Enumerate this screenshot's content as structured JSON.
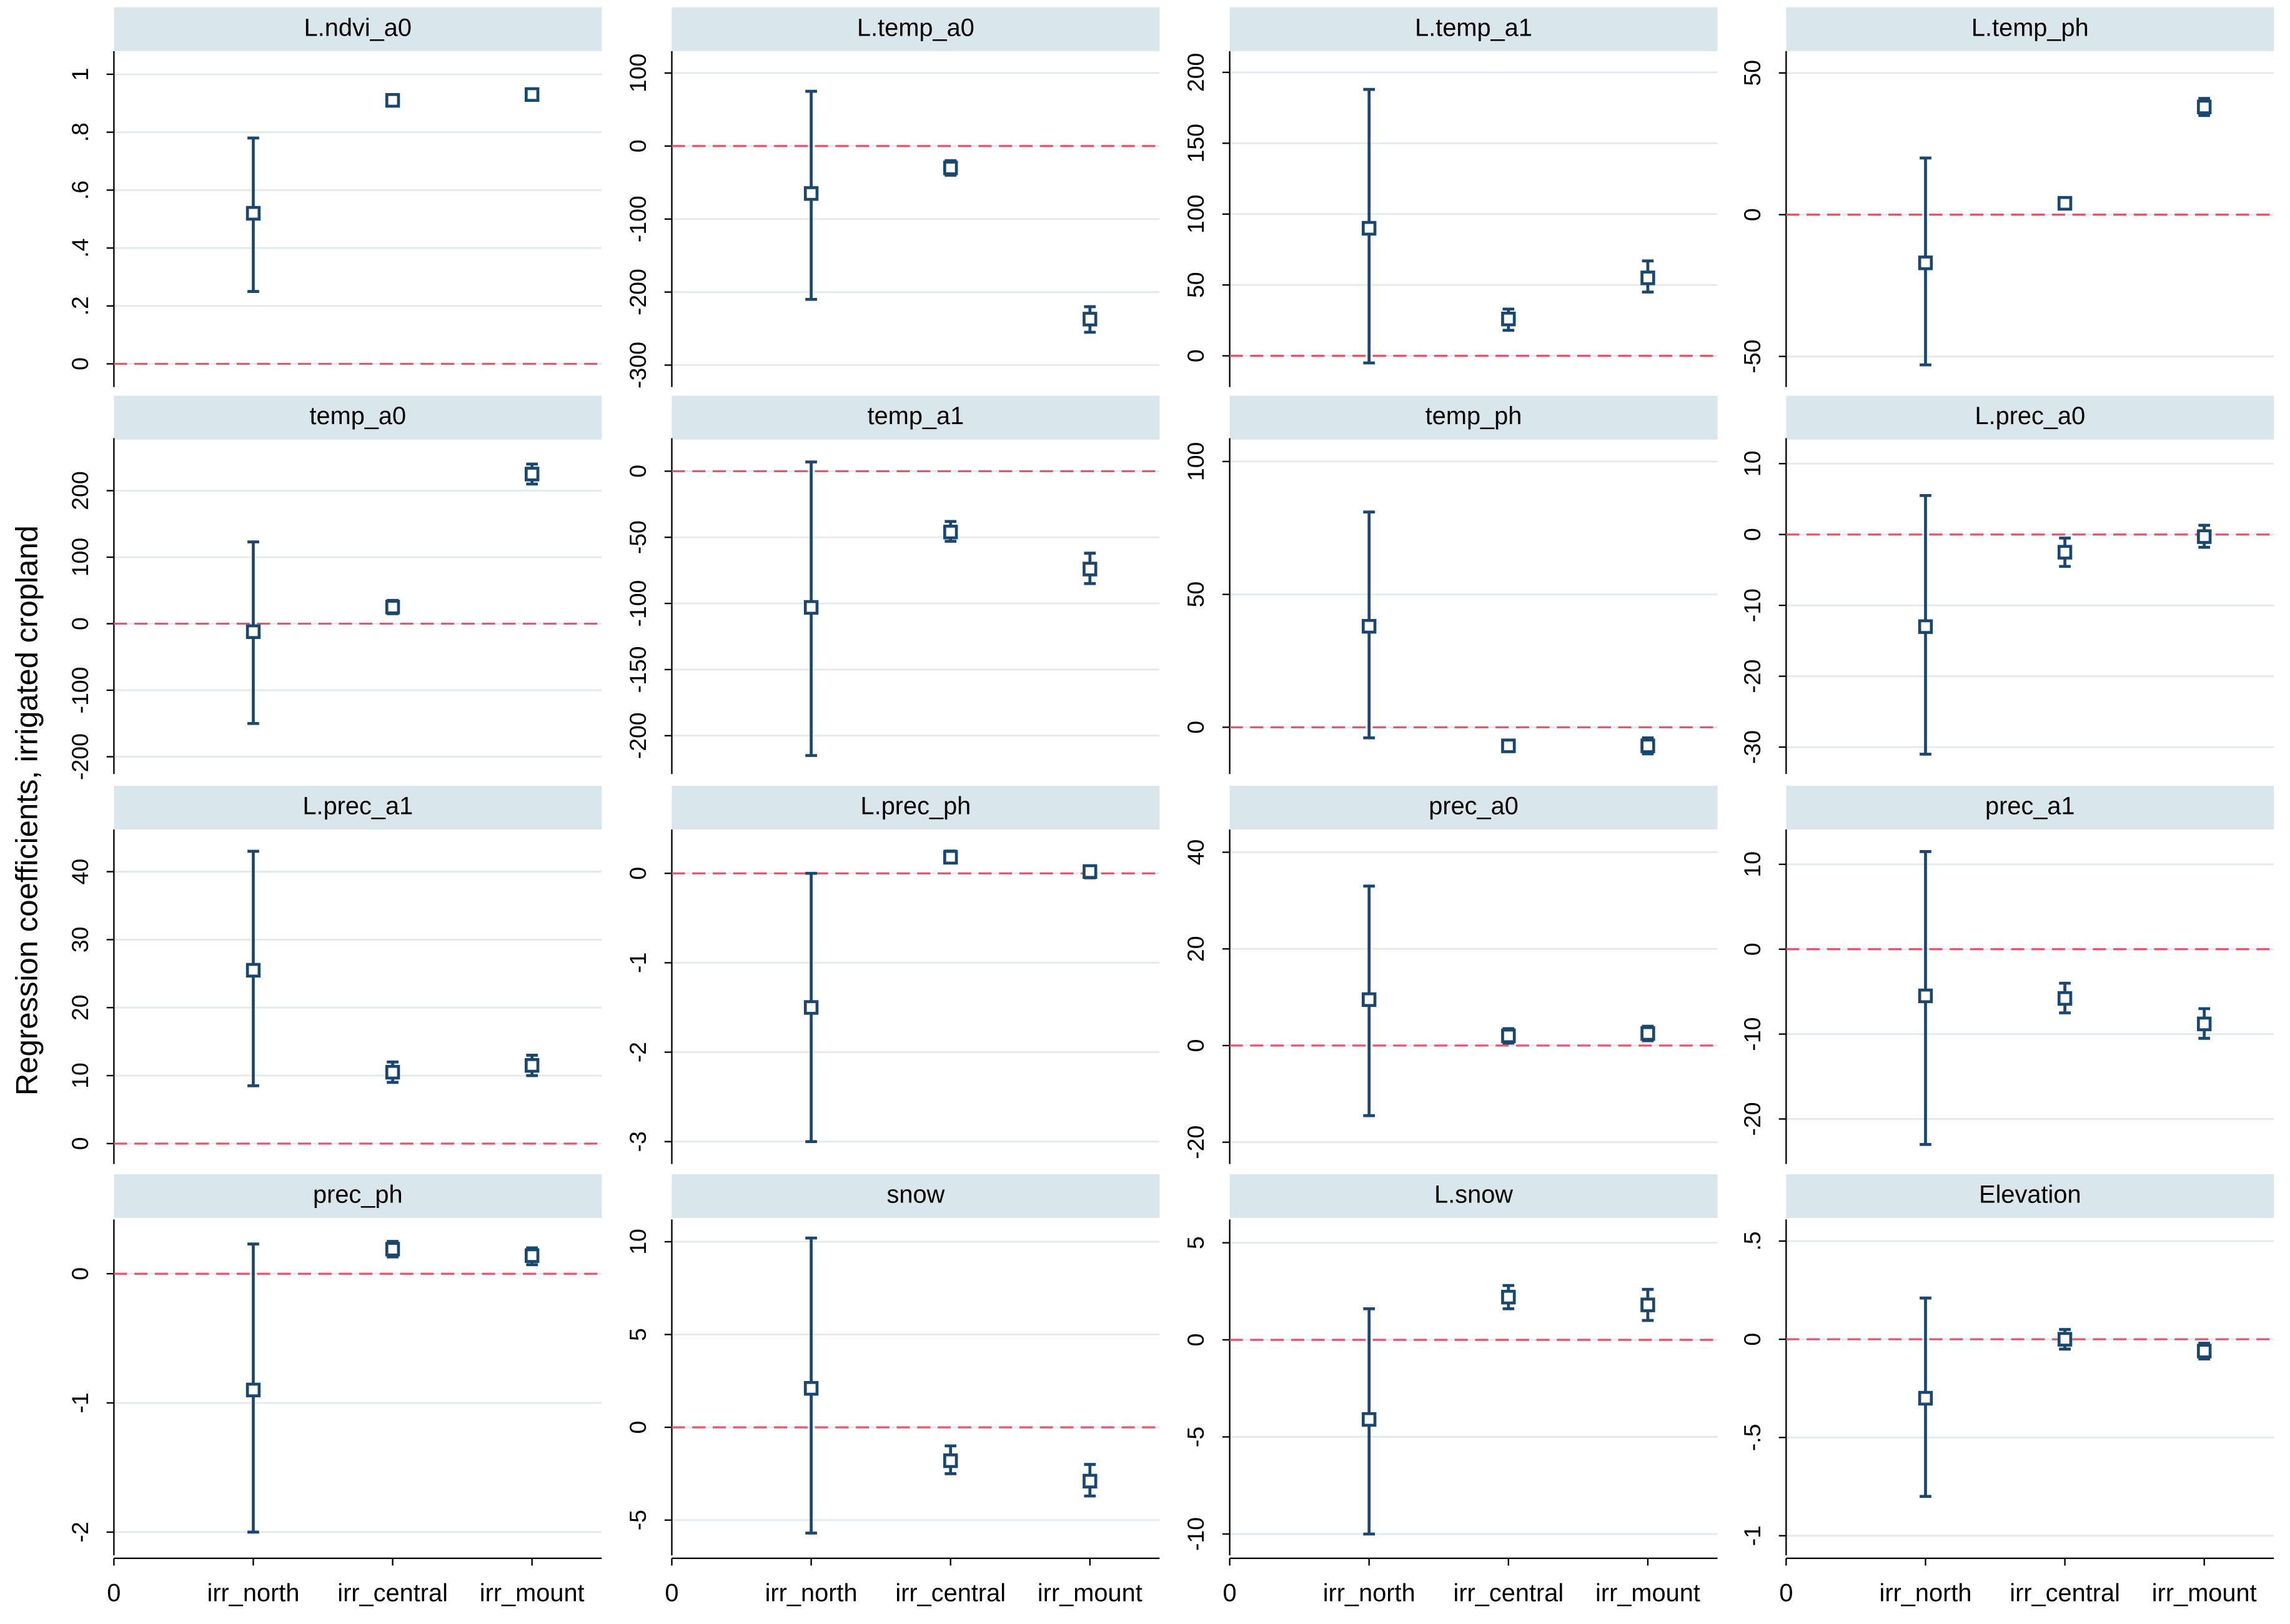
{
  "y_axis_title": "Regression coefficients, irrigated cropland",
  "x_axis": {
    "xlim": [
      0,
      3.5
    ],
    "xticks": [
      0,
      {
        "value": 1,
        "label": "irr_north"
      },
      {
        "value": 2,
        "label": "irr_central"
      },
      {
        "value": 3,
        "label": "irr_mount"
      }
    ]
  },
  "chart_data": [
    {
      "type": "scatter",
      "title": "L.ndvi_a0",
      "x": [
        1,
        2,
        3
      ],
      "series": [
        {
          "color": "#1a476f",
          "values": [
            0.52,
            0.91,
            0.93
          ],
          "ci_low": [
            0.25,
            0.9,
            0.92
          ],
          "ci_high": [
            0.78,
            0.92,
            0.94
          ]
        }
      ],
      "ylim": [
        -0.08,
        1.08
      ],
      "yticks": [
        0,
        {
          "value": 0.2,
          "label": ".2"
        },
        {
          "value": 0.4,
          "label": ".4"
        },
        {
          "value": 0.6,
          "label": ".6"
        },
        {
          "value": 0.8,
          "label": ".8"
        },
        1
      ],
      "reference_line": {
        "y": 0,
        "color": "#e8546d"
      },
      "grid": true
    },
    {
      "type": "scatter",
      "title": "L.temp_a0",
      "x": [
        1,
        2,
        3
      ],
      "series": [
        {
          "color": "#1a476f",
          "values": [
            -65,
            -30,
            -237
          ],
          "ci_low": [
            -210,
            -40,
            -255
          ],
          "ci_high": [
            75,
            -20,
            -220
          ]
        }
      ],
      "ylim": [
        -330,
        130
      ],
      "yticks": [
        -300,
        -200,
        -100,
        0,
        100
      ],
      "reference_line": {
        "y": 0,
        "color": "#e8546d"
      },
      "grid": true
    },
    {
      "type": "scatter",
      "title": "L.temp_a1",
      "x": [
        1,
        2,
        3
      ],
      "series": [
        {
          "color": "#1a476f",
          "values": [
            90,
            26,
            55
          ],
          "ci_low": [
            -5,
            18,
            45
          ],
          "ci_high": [
            188,
            33,
            67
          ]
        }
      ],
      "ylim": [
        -22,
        215
      ],
      "yticks": [
        0,
        50,
        100,
        150,
        200
      ],
      "reference_line": {
        "y": 0,
        "color": "#e8546d"
      },
      "grid": true
    },
    {
      "type": "scatter",
      "title": "L.temp_ph",
      "x": [
        1,
        2,
        3
      ],
      "series": [
        {
          "color": "#1a476f",
          "values": [
            -17,
            4,
            38
          ],
          "ci_low": [
            -53,
            2,
            35
          ],
          "ci_high": [
            20,
            6,
            41
          ]
        }
      ],
      "ylim": [
        -60.8,
        57.7
      ],
      "yticks": [
        -50,
        0,
        50
      ],
      "reference_line": {
        "y": 0,
        "color": "#e8546d"
      },
      "grid": true
    },
    {
      "type": "scatter",
      "title": "temp_a0",
      "x": [
        1,
        2,
        3
      ],
      "series": [
        {
          "color": "#1a476f",
          "values": [
            -12,
            25,
            225
          ],
          "ci_low": [
            -150,
            15,
            210
          ],
          "ci_high": [
            123,
            35,
            240
          ]
        }
      ],
      "ylim": [
        -226,
        279
      ],
      "yticks": [
        -200,
        -100,
        0,
        100,
        200
      ],
      "reference_line": {
        "y": 0,
        "color": "#e8546d"
      },
      "grid": true
    },
    {
      "type": "scatter",
      "title": "temp_a1",
      "x": [
        1,
        2,
        3
      ],
      "series": [
        {
          "color": "#1a476f",
          "values": [
            -103,
            -46,
            -74
          ],
          "ci_low": [
            -215,
            -53,
            -85
          ],
          "ci_high": [
            7,
            -38,
            -62
          ]
        }
      ],
      "ylim": [
        -229,
        25
      ],
      "yticks": [
        -200,
        -150,
        -100,
        -50,
        0
      ],
      "reference_line": {
        "y": 0,
        "color": "#e8546d"
      },
      "grid": true
    },
    {
      "type": "scatter",
      "title": "temp_ph",
      "x": [
        1,
        2,
        3
      ],
      "series": [
        {
          "color": "#1a476f",
          "values": [
            38,
            -7,
            -7
          ],
          "ci_low": [
            -4,
            -9,
            -10
          ],
          "ci_high": [
            81,
            -5,
            -4
          ]
        }
      ],
      "ylim": [
        -17.6,
        108.8
      ],
      "yticks": [
        0,
        50,
        100
      ],
      "reference_line": {
        "y": 0,
        "color": "#e8546d"
      },
      "grid": true
    },
    {
      "type": "scatter",
      "title": "L.prec_a0",
      "x": [
        1,
        2,
        3
      ],
      "series": [
        {
          "color": "#1a476f",
          "values": [
            -13,
            -2.5,
            -0.3
          ],
          "ci_low": [
            -31,
            -4.5,
            -1.8
          ],
          "ci_high": [
            5.5,
            -0.5,
            1.3
          ]
        }
      ],
      "ylim": [
        -33.8,
        13.6
      ],
      "yticks": [
        -30,
        -20,
        -10,
        0,
        10
      ],
      "reference_line": {
        "y": 0,
        "color": "#e8546d"
      },
      "grid": true
    },
    {
      "type": "scatter",
      "title": "L.prec_a1",
      "x": [
        1,
        2,
        3
      ],
      "series": [
        {
          "color": "#1a476f",
          "values": [
            25.5,
            10.5,
            11.5
          ],
          "ci_low": [
            8.5,
            9,
            10
          ],
          "ci_high": [
            43,
            12,
            13
          ]
        }
      ],
      "ylim": [
        -3,
        46.2
      ],
      "yticks": [
        0,
        10,
        20,
        30,
        40
      ],
      "reference_line": {
        "y": 0,
        "color": "#e8546d"
      },
      "grid": true
    },
    {
      "type": "scatter",
      "title": "L.prec_ph",
      "x": [
        1,
        2,
        3
      ],
      "series": [
        {
          "color": "#1a476f",
          "values": [
            -1.5,
            0.18,
            0.02
          ],
          "ci_low": [
            -3,
            0.12,
            -0.05
          ],
          "ci_high": [
            0,
            0.25,
            0.08
          ]
        }
      ],
      "ylim": [
        -3.25,
        0.49
      ],
      "yticks": [
        -3,
        -2,
        -1,
        0
      ],
      "reference_line": {
        "y": 0,
        "color": "#e8546d"
      },
      "grid": true
    },
    {
      "type": "scatter",
      "title": "prec_a0",
      "x": [
        1,
        2,
        3
      ],
      "series": [
        {
          "color": "#1a476f",
          "values": [
            9.5,
            2,
            2.5
          ],
          "ci_low": [
            -14.5,
            0.5,
            1
          ],
          "ci_high": [
            33,
            3.5,
            4
          ]
        }
      ],
      "ylim": [
        -24.5,
        44.7
      ],
      "yticks": [
        -20,
        0,
        20,
        40
      ],
      "reference_line": {
        "y": 0,
        "color": "#e8546d"
      },
      "grid": true
    },
    {
      "type": "scatter",
      "title": "prec_a1",
      "x": [
        1,
        2,
        3
      ],
      "series": [
        {
          "color": "#1a476f",
          "values": [
            -5.5,
            -5.8,
            -8.8
          ],
          "ci_low": [
            -23,
            -7.5,
            -10.5
          ],
          "ci_high": [
            11.5,
            -4,
            -7
          ]
        }
      ],
      "ylim": [
        -25.3,
        14.1
      ],
      "yticks": [
        -20,
        -10,
        0,
        10
      ],
      "reference_line": {
        "y": 0,
        "color": "#e8546d"
      },
      "grid": true
    },
    {
      "type": "scatter",
      "title": "prec_ph",
      "x": [
        1,
        2,
        3
      ],
      "series": [
        {
          "color": "#1a476f",
          "values": [
            -0.9,
            0.19,
            0.14
          ],
          "ci_low": [
            -2,
            0.13,
            0.07
          ],
          "ci_high": [
            0.23,
            0.25,
            0.2
          ]
        }
      ],
      "ylim": [
        -2.18,
        0.42
      ],
      "yticks": [
        -2,
        -1,
        0
      ],
      "reference_line": {
        "y": 0,
        "color": "#e8546d"
      },
      "grid": true
    },
    {
      "type": "scatter",
      "title": "snow",
      "x": [
        1,
        2,
        3
      ],
      "series": [
        {
          "color": "#1a476f",
          "values": [
            2.1,
            -1.8,
            -2.9
          ],
          "ci_low": [
            -5.7,
            -2.5,
            -3.7
          ],
          "ci_high": [
            10.2,
            -1,
            -2
          ]
        }
      ],
      "ylim": [
        -6.9,
        11.2
      ],
      "yticks": [
        -5,
        0,
        5,
        10
      ],
      "reference_line": {
        "y": 0,
        "color": "#e8546d"
      },
      "grid": true
    },
    {
      "type": "scatter",
      "title": "L.snow",
      "x": [
        1,
        2,
        3
      ],
      "series": [
        {
          "color": "#1a476f",
          "values": [
            -4.1,
            2.2,
            1.8
          ],
          "ci_low": [
            -10,
            1.6,
            1
          ],
          "ci_high": [
            1.6,
            2.8,
            2.6
          ]
        }
      ],
      "ylim": [
        -11.1,
        6.2
      ],
      "yticks": [
        -10,
        -5,
        0,
        5
      ],
      "reference_line": {
        "y": 0,
        "color": "#e8546d"
      },
      "grid": true
    },
    {
      "type": "scatter",
      "title": "Elevation",
      "x": [
        1,
        2,
        3
      ],
      "series": [
        {
          "color": "#1a476f",
          "values": [
            -0.3,
            0,
            -0.06
          ],
          "ci_low": [
            -0.8,
            -0.05,
            -0.1
          ],
          "ci_high": [
            0.21,
            0.05,
            -0.02
          ]
        }
      ],
      "ylim": [
        -1.1,
        0.61
      ],
      "yticks": [
        -1,
        {
          "value": -0.5,
          "label": "-.5"
        },
        0,
        {
          "value": 0.5,
          "label": ".5"
        }
      ],
      "reference_line": {
        "y": 0,
        "color": "#e8546d"
      },
      "grid": true
    }
  ]
}
